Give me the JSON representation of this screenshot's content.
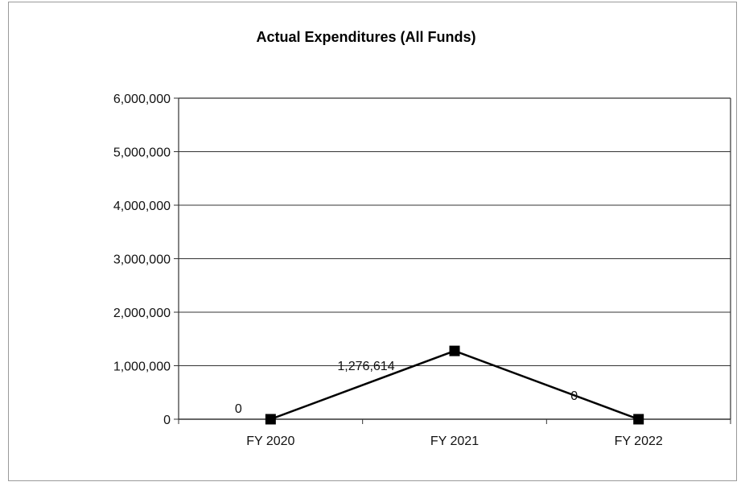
{
  "chart_data": {
    "type": "line",
    "title": "Actual Expenditures (All Funds)",
    "xlabel": "",
    "ylabel": "",
    "categories": [
      "FY 2020",
      "FY 2021",
      "FY 2022"
    ],
    "series": [
      {
        "values": [
          0,
          1276614,
          0
        ],
        "data_labels": [
          "0",
          "1,276,614",
          "0"
        ],
        "color": "#000000"
      }
    ],
    "ylim": [
      0,
      6000000
    ],
    "yticks": [
      0,
      1000000,
      2000000,
      3000000,
      4000000,
      5000000,
      6000000
    ],
    "ytick_labels": [
      "0",
      "1,000,000",
      "2,000,000",
      "3,000,000",
      "4,000,000",
      "5,000,000",
      "6,000,000"
    ],
    "grid": true,
    "legend": "none"
  }
}
